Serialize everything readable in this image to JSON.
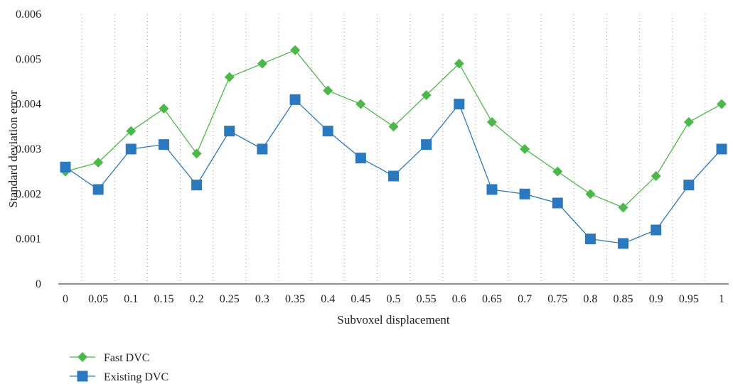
{
  "chart_data": {
    "type": "line",
    "xlabel": "Subvoxel displacement",
    "ylabel": "Standard deviation error",
    "x": [
      "0",
      "0.05",
      "0.1",
      "0.15",
      "0.2",
      "0.25",
      "0.3",
      "0.35",
      "0.4",
      "0.45",
      "0.5",
      "0.55",
      "0.6",
      "0.65",
      "0.7",
      "0.75",
      "0.8",
      "0.85",
      "0.9",
      "0.95",
      "1"
    ],
    "ylim": [
      0,
      0.006
    ],
    "yticks": [
      "0",
      "0.001",
      "0.002",
      "0.003",
      "0.004",
      "0.005",
      "0.006"
    ],
    "grid": "vertical dotted",
    "legend_position": "bottom-left",
    "series": [
      {
        "name": "Fast DVC",
        "color": "#4bb849",
        "marker": "diamond",
        "values": [
          0.0025,
          0.0027,
          0.0034,
          0.0039,
          0.0029,
          0.0046,
          0.0049,
          0.0052,
          0.0043,
          0.004,
          0.0035,
          0.0042,
          0.0049,
          0.0036,
          0.003,
          0.0025,
          0.002,
          0.0017,
          0.0024,
          0.0036,
          0.004
        ]
      },
      {
        "name": "Existing DVC",
        "color": "#2a78bf",
        "marker": "square",
        "values": [
          0.0026,
          0.0021,
          0.003,
          0.0031,
          0.0022,
          0.0034,
          0.003,
          0.0041,
          0.0034,
          0.0028,
          0.0024,
          0.0031,
          0.004,
          0.0021,
          0.002,
          0.0018,
          0.001,
          0.0009,
          0.0012,
          0.0022,
          0.003
        ]
      }
    ]
  }
}
